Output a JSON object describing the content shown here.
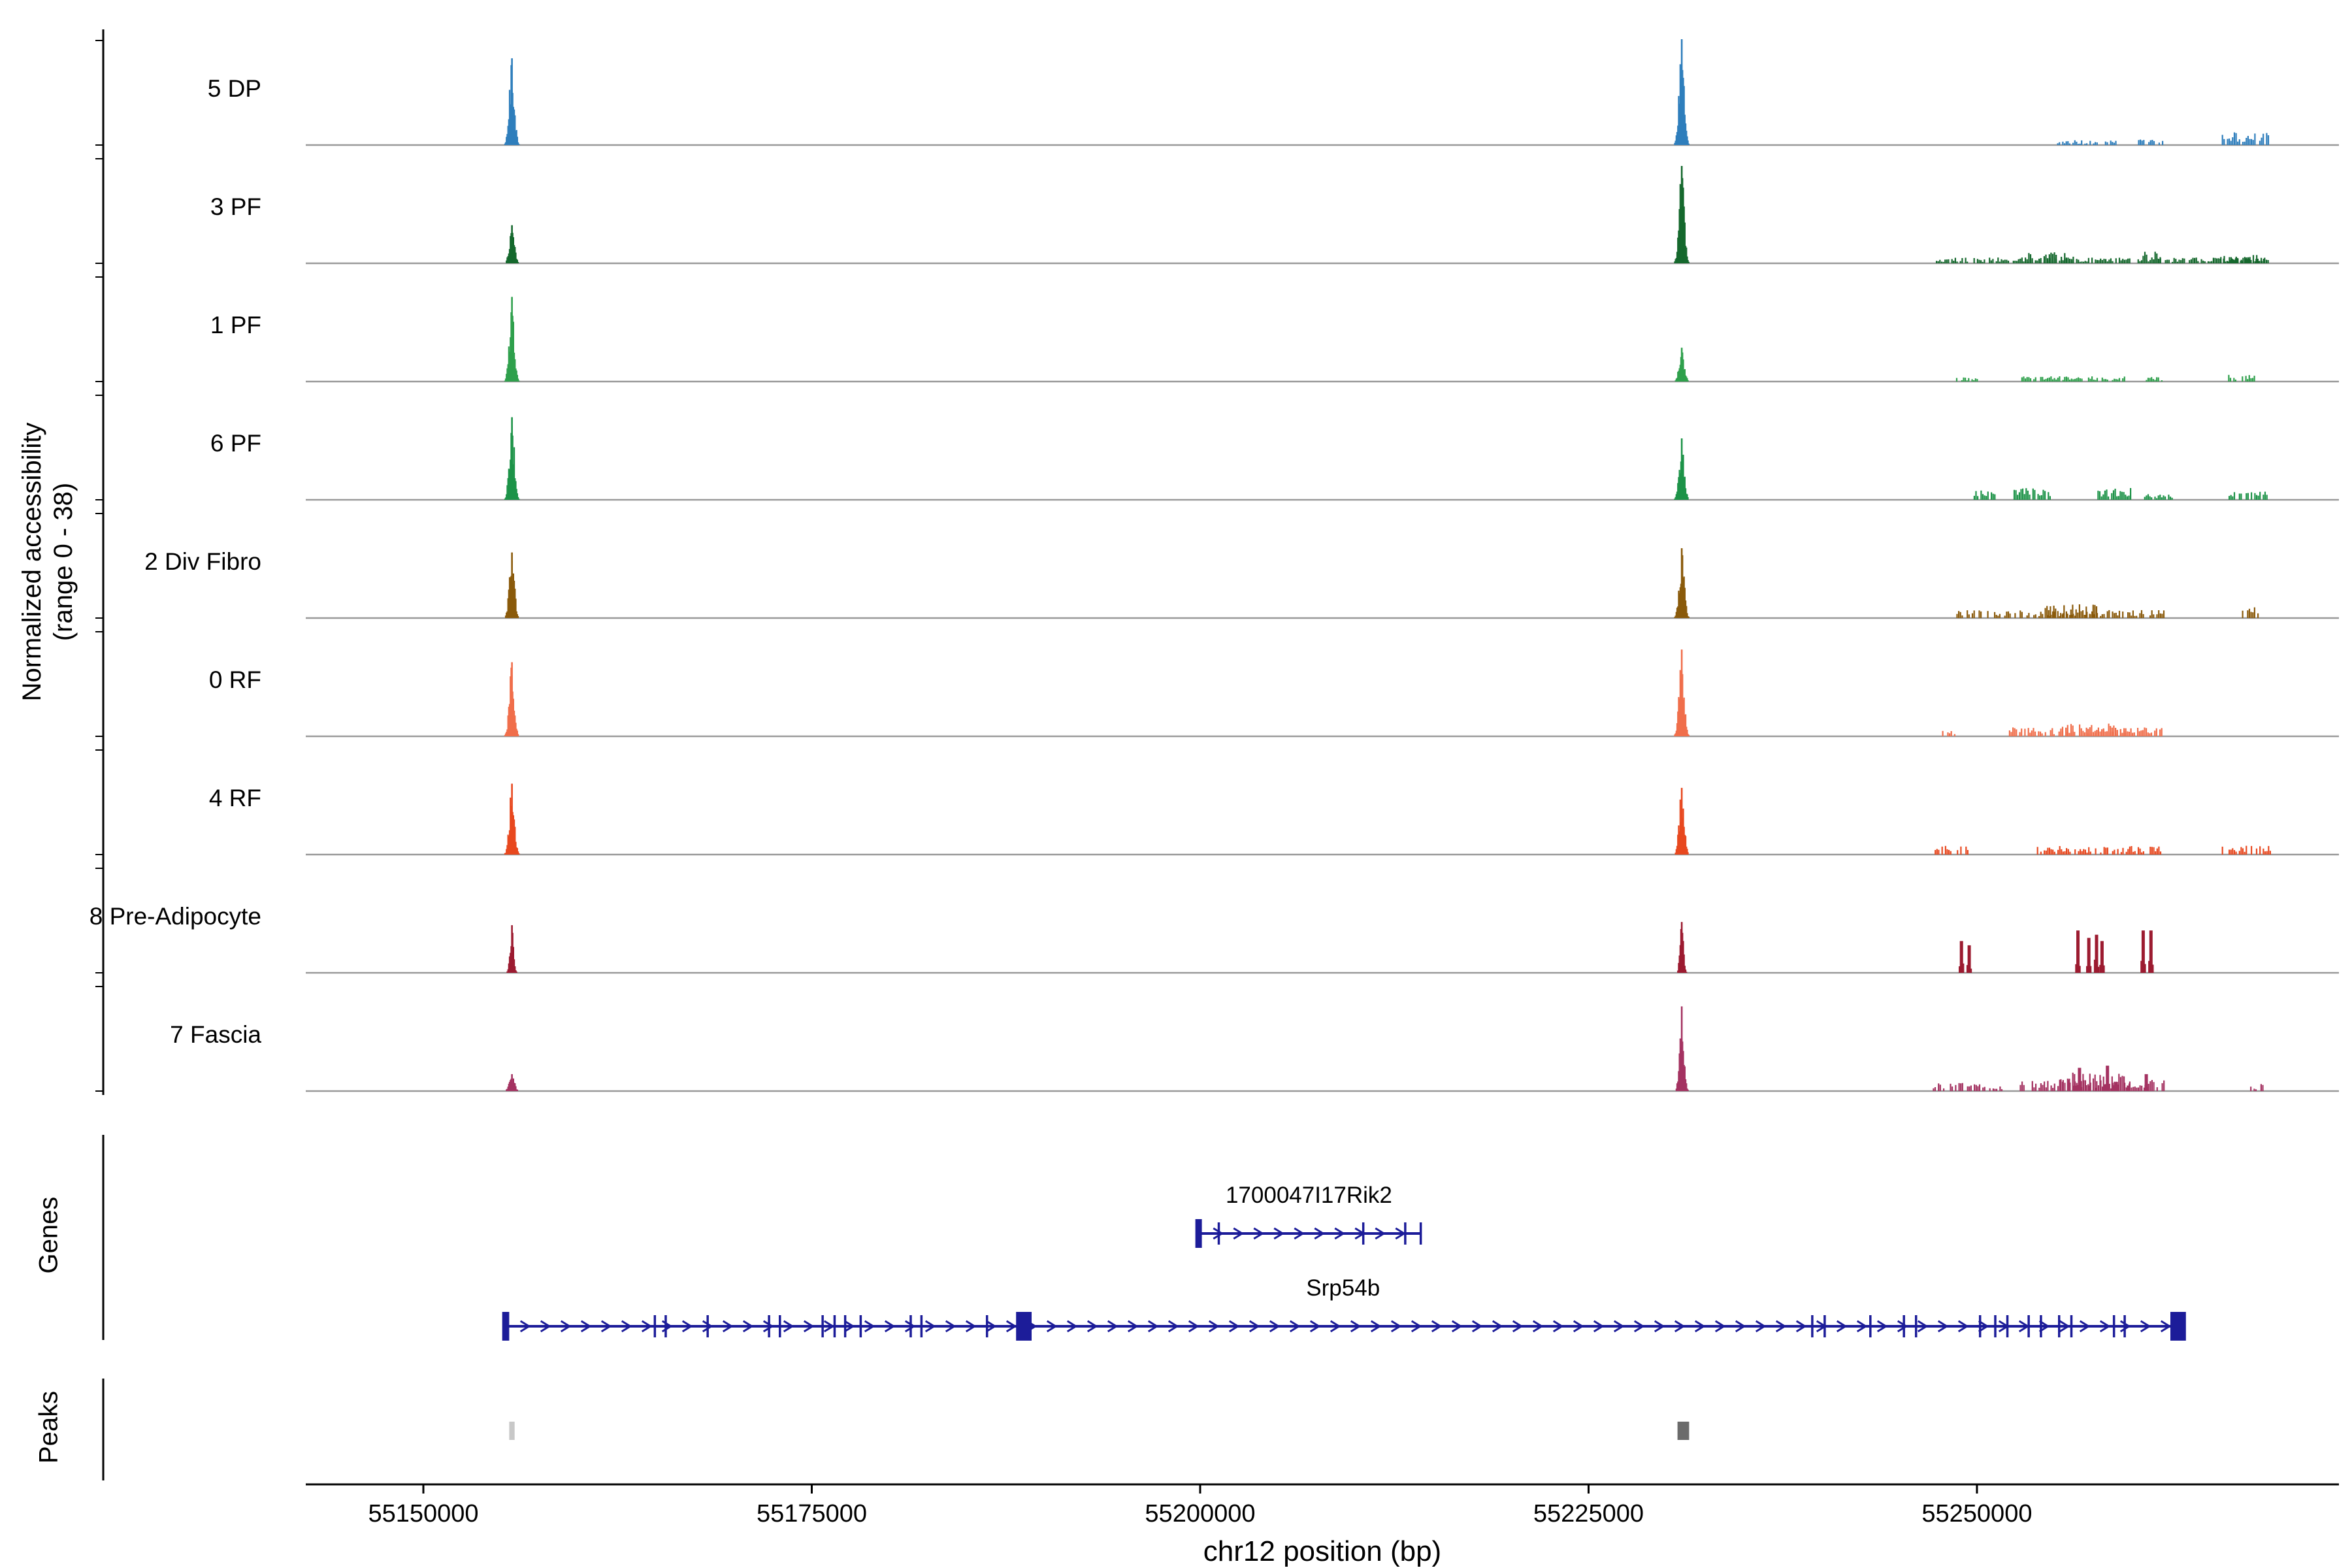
{
  "chart_data": {
    "type": "area",
    "title": "",
    "region": {
      "chrom": "chr12",
      "start": 55142430,
      "end": 55273300
    },
    "y_axis": {
      "line1": "Normalized accessibility",
      "line2": "(range 0 - 38)",
      "range_min": 0,
      "range_max": 38
    },
    "sections": {
      "genes_label": "Genes",
      "peaks_label": "Peaks"
    },
    "x_axis": {
      "title": "chr12 position (bp)",
      "ticks": [
        {
          "bp": 55150000,
          "label": "55150000"
        },
        {
          "bp": 55175000,
          "label": "55175000"
        },
        {
          "bp": 55200000,
          "label": "55200000"
        },
        {
          "bp": 55225000,
          "label": "55225000"
        },
        {
          "bp": 55250000,
          "label": "55250000"
        }
      ]
    },
    "signal": {
      "peak_a_bp": 55155700,
      "peak_b_bp": 55231000
    },
    "colors": {
      "gene": "#1C1C99",
      "baseline": "#999999",
      "axis": "#000000"
    },
    "tracks": [
      {
        "label": "5 DP",
        "color": "#2E7EBC",
        "peak_a": 0.82,
        "peak_b": 1.0,
        "noise": [
          {
            "s": 55255200,
            "e": 55259000,
            "h": 0.045
          },
          {
            "s": 55260300,
            "e": 55262000,
            "h": 0.05
          },
          {
            "s": 55265800,
            "e": 55267900,
            "h": 0.11
          },
          {
            "s": 55268100,
            "e": 55268900,
            "h": 0.13
          }
        ]
      },
      {
        "label": "3 PF",
        "color": "#15682D",
        "peak_a": 0.36,
        "peak_b": 0.92,
        "noise": [
          {
            "s": 55247400,
            "e": 55268800,
            "h": 0.05
          },
          {
            "s": 55252900,
            "e": 55256300,
            "h": 0.1
          },
          {
            "s": 55260700,
            "e": 55261900,
            "h": 0.1
          },
          {
            "s": 55265700,
            "e": 55268500,
            "h": 0.075
          }
        ]
      },
      {
        "label": "1 PF",
        "color": "#2FA04C",
        "peak_a": 0.8,
        "peak_b": 0.32,
        "noise": [
          {
            "s": 55248700,
            "e": 55250300,
            "h": 0.035
          },
          {
            "s": 55252900,
            "e": 55259600,
            "h": 0.045
          },
          {
            "s": 55260800,
            "e": 55262100,
            "h": 0.04
          },
          {
            "s": 55266100,
            "e": 55267900,
            "h": 0.06
          }
        ]
      },
      {
        "label": "6 PF",
        "color": "#1D9348",
        "peak_a": 0.78,
        "peak_b": 0.58,
        "noise": [
          {
            "s": 55249500,
            "e": 55251300,
            "h": 0.09
          },
          {
            "s": 55252400,
            "e": 55254800,
            "h": 0.1
          },
          {
            "s": 55257800,
            "e": 55260200,
            "h": 0.11
          },
          {
            "s": 55260800,
            "e": 55262600,
            "h": 0.05
          },
          {
            "s": 55265800,
            "e": 55268700,
            "h": 0.08
          }
        ]
      },
      {
        "label": "2 Div Fibro",
        "color": "#8A5A0B",
        "peak_a": 0.62,
        "peak_b": 0.66,
        "noise": [
          {
            "s": 55248500,
            "e": 55262100,
            "h": 0.07
          },
          {
            "s": 55254400,
            "e": 55257700,
            "h": 0.12
          },
          {
            "s": 55267100,
            "e": 55268300,
            "h": 0.1
          }
        ]
      },
      {
        "label": "0 RF",
        "color": "#F06E4B",
        "peak_a": 0.7,
        "peak_b": 0.82,
        "noise": [
          {
            "s": 55247800,
            "e": 55248600,
            "h": 0.05
          },
          {
            "s": 55252100,
            "e": 55261900,
            "h": 0.08
          },
          {
            "s": 55255400,
            "e": 55259700,
            "h": 0.11
          }
        ]
      },
      {
        "label": "4 RF",
        "color": "#E8481F",
        "peak_a": 0.67,
        "peak_b": 0.63,
        "noise": [
          {
            "s": 55247100,
            "e": 55249500,
            "h": 0.08
          },
          {
            "s": 55253900,
            "e": 55262100,
            "h": 0.075
          },
          {
            "s": 55265800,
            "e": 55268900,
            "h": 0.08
          }
        ]
      },
      {
        "label": "8 Pre-Adipocyte",
        "color": "#9C1B30",
        "peak_a": 0.45,
        "peak_b": 0.48,
        "sigma_a": 160,
        "sigma_b": 160,
        "noise": [],
        "spikes": [
          {
            "c": 55249000,
            "h": 0.3
          },
          {
            "c": 55249500,
            "h": 0.26
          },
          {
            "c": 55256500,
            "h": 0.4
          },
          {
            "c": 55257200,
            "h": 0.33
          },
          {
            "c": 55257700,
            "h": 0.36
          },
          {
            "c": 55258050,
            "h": 0.3
          },
          {
            "c": 55260700,
            "h": 0.4
          },
          {
            "c": 55261200,
            "h": 0.4
          }
        ]
      },
      {
        "label": "7 Fascia",
        "color": "#A43261",
        "peak_a": 0.16,
        "peak_b": 0.8,
        "sigma_b": 200,
        "noise": [
          {
            "s": 55247200,
            "e": 55251600,
            "h": 0.07
          },
          {
            "s": 55252800,
            "e": 55262100,
            "h": 0.1
          },
          {
            "s": 55255400,
            "e": 55259900,
            "h": 0.16
          },
          {
            "s": 55267300,
            "e": 55268500,
            "h": 0.06
          }
        ],
        "spikes": [
          {
            "c": 55256600,
            "h": 0.22
          },
          {
            "c": 55258400,
            "h": 0.24
          },
          {
            "c": 55260900,
            "h": 0.16
          }
        ]
      }
    ],
    "genes": [
      {
        "name": "1700047I17Rik2",
        "start": 55199800,
        "end": 55214200,
        "strand": "+",
        "exon_ticks": [
          55199800,
          55201200,
          55210500,
          55213200,
          55214200
        ],
        "boxes": [
          {
            "bp": 55199900,
            "w_bp": 300
          }
        ]
      },
      {
        "name": "Srp54b",
        "start": 55155200,
        "end": 55263200,
        "strand": "+",
        "exon_ticks": [
          55164900,
          55165600,
          55168300,
          55172250,
          55172950,
          55175700,
          55176470,
          55177150,
          55178150,
          55181370,
          55182060,
          55186280,
          55239400,
          55240200,
          55243140,
          55245300,
          55246080,
          55250200,
          55251180,
          55251960,
          55253330,
          55254120,
          55255290,
          55256080,
          55258820,
          55259510
        ],
        "boxes": [
          {
            "bp": 55155300,
            "w_bp": 450
          },
          {
            "bp": 55188650,
            "w_bp": 1000
          },
          {
            "bp": 55262950,
            "w_bp": 1000
          }
        ]
      }
    ],
    "peak_calls": [
      {
        "bp": 55155700,
        "w_bp": 350,
        "color": "#C8C8C8"
      },
      {
        "bp": 55231100,
        "w_bp": 750,
        "color": "#6B6B6B"
      }
    ]
  }
}
